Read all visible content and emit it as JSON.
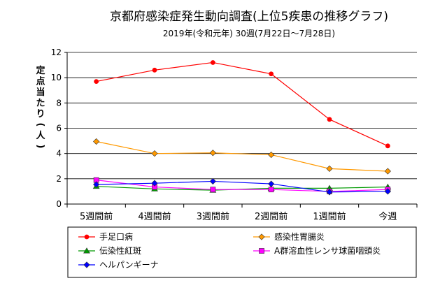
{
  "chart_data": {
    "type": "line",
    "title": "京都府感染症発生動向調査(上位5疾患の推移グラフ)",
    "subtitle": "2019年(令和元年) 30週(7月22日～7月28日)",
    "ylabel": "定点当たり(人)",
    "xlabel": "",
    "categories": [
      "5週間前",
      "4週間前",
      "3週間前",
      "2週間前",
      "1週間前",
      "今週"
    ],
    "ylim": [
      0,
      12
    ],
    "yticks": [
      0,
      2,
      4,
      6,
      8,
      10,
      12
    ],
    "grid": true,
    "legend_position": "bottom",
    "series": [
      {
        "name": "手足口病",
        "values": [
          9.7,
          10.6,
          11.2,
          10.3,
          6.7,
          4.6
        ],
        "color": "#ff0000",
        "marker": "circle"
      },
      {
        "name": "感染性胃腸炎",
        "values": [
          4.95,
          4.0,
          4.05,
          3.9,
          2.8,
          2.6
        ],
        "color": "#ff9900",
        "marker": "diamond"
      },
      {
        "name": "伝染性紅斑",
        "values": [
          1.4,
          1.2,
          1.1,
          1.25,
          1.25,
          1.35
        ],
        "color": "#009900",
        "marker": "triangle"
      },
      {
        "name": "A群溶血性レンサ球菌咽頭炎",
        "values": [
          1.9,
          1.35,
          1.15,
          1.15,
          1.0,
          1.15
        ],
        "color": "#ff00ff",
        "marker": "square"
      },
      {
        "name": "ヘルパンギーナ",
        "values": [
          1.55,
          1.65,
          1.8,
          1.6,
          0.95,
          1.0
        ],
        "color": "#0000ff",
        "marker": "diamond"
      }
    ]
  }
}
